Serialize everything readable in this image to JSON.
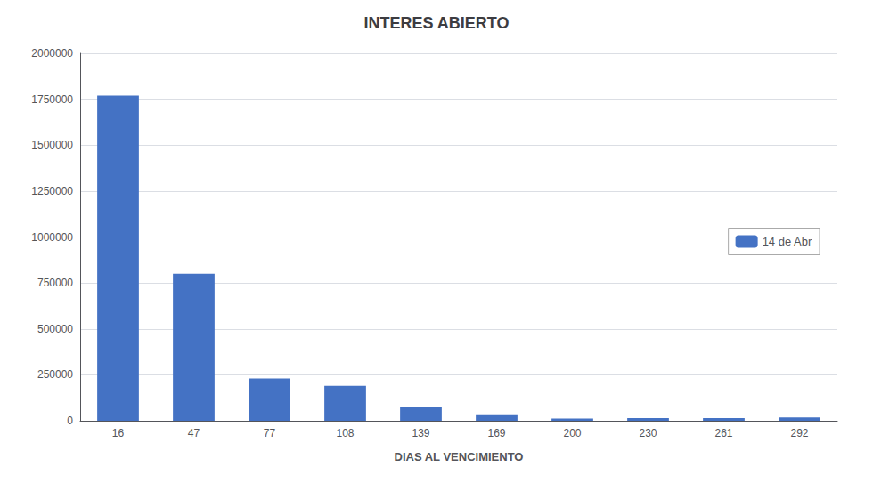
{
  "chart_data": {
    "type": "bar",
    "title": "INTERES ABIERTO",
    "xlabel": "DIAS AL VENCIMIENTO",
    "categories": [
      "16",
      "47",
      "77",
      "108",
      "139",
      "169",
      "200",
      "230",
      "261",
      "292"
    ],
    "series": [
      {
        "name": "14 de Abr",
        "color": "#4472c4",
        "values": [
          1770000,
          800000,
          230000,
          190000,
          75000,
          35000,
          12000,
          14000,
          15000,
          18000
        ]
      }
    ],
    "ylim": [
      0,
      2000000
    ],
    "yticks": [
      0,
      250000,
      500000,
      750000,
      1000000,
      1250000,
      1500000,
      1750000,
      2000000
    ],
    "grid": true,
    "legend": "right"
  }
}
